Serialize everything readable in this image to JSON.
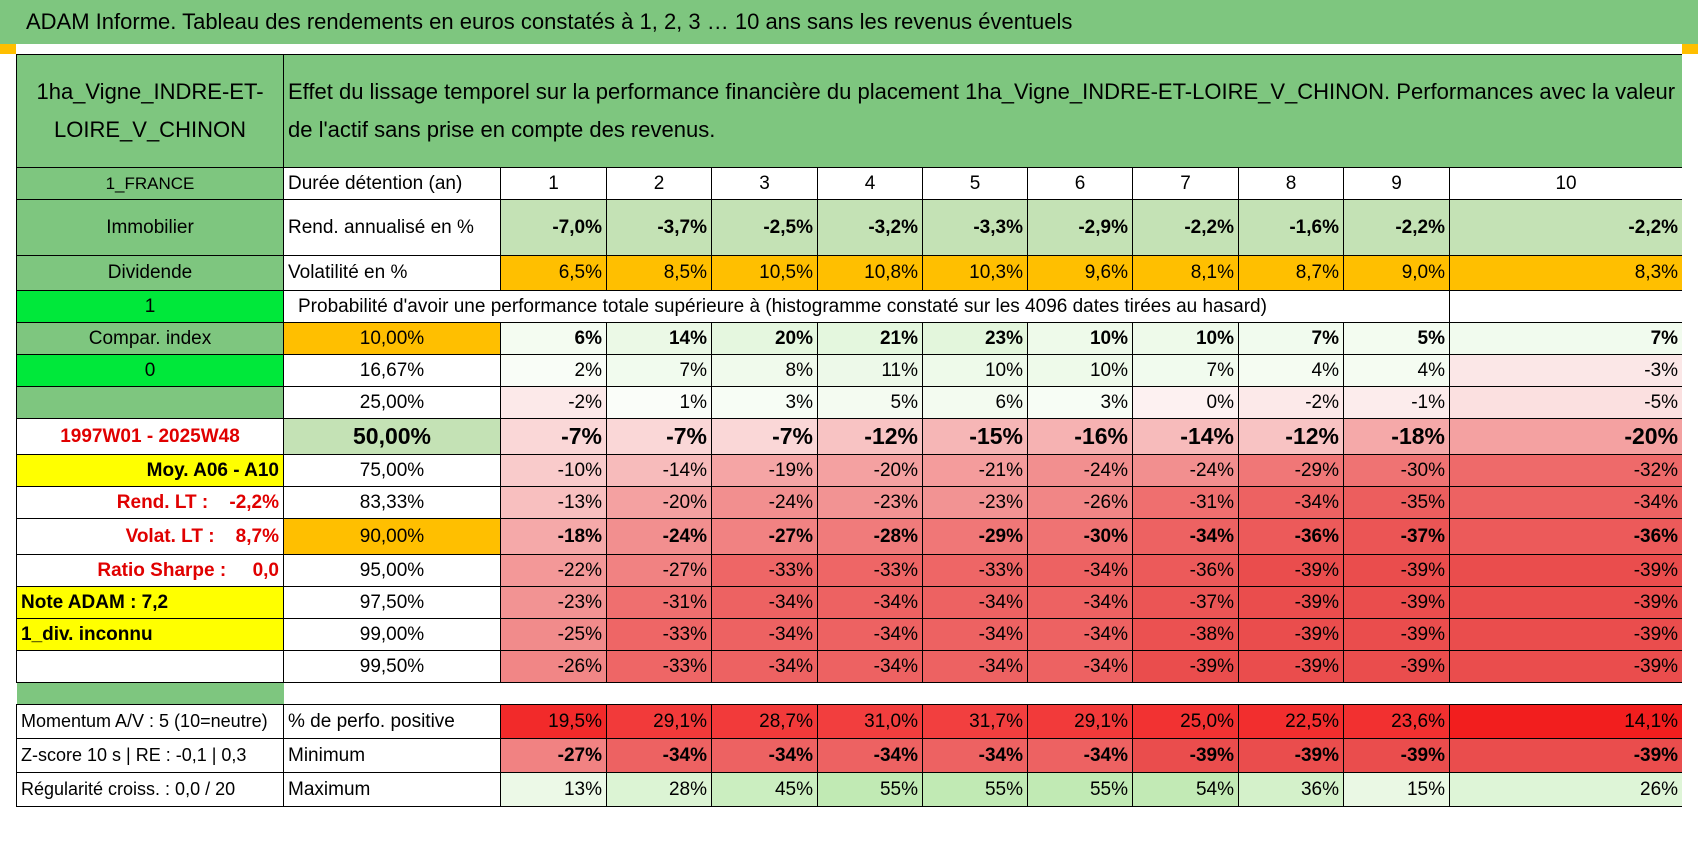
{
  "title": "ADAM Informe. Tableau des rendements en euros constatés à 1, 2, 3 … 10 ans sans les revenus éventuels",
  "asset_name": "1ha_Vigne_INDRE-ET-LOIRE_V_CHINON",
  "description": "Effet du lissage temporel sur la performance financière du placement 1ha_Vigne_INDRE-ET-LOIRE_V_CHINON. Performances avec la valeur de l'actif sans prise en compte des revenus.",
  "left_panel": {
    "country": "1_FRANCE",
    "category": "Immobilier",
    "type": "Dividende",
    "flag1": "1",
    "compar_index": "Compar. index",
    "flag0": "0",
    "period": "1997W01 - 2025W48",
    "moy": "Moy. A06 - A10",
    "rend_lt": "Rend. LT :    -2,2%",
    "volat_lt": "Volat. LT :    8,7%",
    "sharpe": "Ratio Sharpe :     0,0",
    "note": "Note ADAM : 7,2",
    "div": "1_div. inconnu"
  },
  "header_row": {
    "label": "Durée détention (an)",
    "years": [
      "1",
      "2",
      "3",
      "4",
      "5",
      "6",
      "7",
      "8",
      "9",
      "10"
    ]
  },
  "rend_row": {
    "label": "Rend. annualisé en %",
    "values": [
      "-7,0%",
      "-3,7%",
      "-2,5%",
      "-3,2%",
      "-3,3%",
      "-2,9%",
      "-2,2%",
      "-1,6%",
      "-2,2%",
      "-2,2%"
    ]
  },
  "vol_row": {
    "label": "Volatilité en %",
    "values": [
      "6,5%",
      "8,5%",
      "10,5%",
      "10,8%",
      "10,3%",
      "9,6%",
      "8,1%",
      "8,7%",
      "9,0%",
      "8,3%"
    ]
  },
  "prob_title": "Probabilité d'avoir une performance totale supérieure à (histogramme constaté sur les 4096 dates tirées au hasard)",
  "pct_rows": [
    {
      "label": "10,00%",
      "values": [
        "6%",
        "14%",
        "20%",
        "21%",
        "23%",
        "10%",
        "10%",
        "7%",
        "5%",
        "7%"
      ],
      "colors": [
        "#f4fcf1",
        "#ebf9e6",
        "#e5f7df",
        "#e4f7de",
        "#e3f6dc",
        "#eefaea",
        "#eefaea",
        "#f1fbee",
        "#f3fcf0",
        "#f1fbee"
      ]
    },
    {
      "label": "16,67%",
      "values": [
        "2%",
        "7%",
        "8%",
        "11%",
        "10%",
        "10%",
        "7%",
        "4%",
        "4%",
        "-3%"
      ],
      "colors": [
        "#f9fdf7",
        "#f1fbee",
        "#f0faec",
        "#edf9e9",
        "#eefaea",
        "#eefaea",
        "#f1fbee",
        "#f5fcf2",
        "#f5fcf2",
        "#fbe7e7"
      ]
    },
    {
      "label": "25,00%",
      "values": [
        "-2%",
        "1%",
        "3%",
        "5%",
        "6%",
        "3%",
        "0%",
        "-2%",
        "-1%",
        "-5%"
      ],
      "colors": [
        "#fce9e9",
        "#fafdf9",
        "#f7fdf5",
        "#f4fbf1",
        "#f3fbf0",
        "#f7fdf5",
        "#fdf1f1",
        "#fce9e9",
        "#fcecec",
        "#fbe0e0"
      ]
    },
    {
      "label": "50,00%",
      "values": [
        "-7%",
        "-7%",
        "-7%",
        "-12%",
        "-15%",
        "-16%",
        "-14%",
        "-12%",
        "-18%",
        "-20%"
      ],
      "colors": [
        "#fad7d7",
        "#fad7d7",
        "#fad7d7",
        "#f8c3c3",
        "#f6b6b6",
        "#f6b2b2",
        "#f7bbbb",
        "#f8c3c3",
        "#f5a9a9",
        "#f4a1a1"
      ]
    },
    {
      "label": "75,00%",
      "values": [
        "-10%",
        "-14%",
        "-19%",
        "-20%",
        "-21%",
        "-24%",
        "-24%",
        "-29%",
        "-30%",
        "-32%"
      ],
      "colors": [
        "#f9cbcb",
        "#f7bbbb",
        "#f5a5a5",
        "#f4a1a1",
        "#f49c9c",
        "#f28f8f",
        "#f28f8f",
        "#f07777",
        "#ef7373",
        "#ee6a6a"
      ]
    },
    {
      "label": "83,33%",
      "values": [
        "-13%",
        "-20%",
        "-24%",
        "-23%",
        "-23%",
        "-26%",
        "-31%",
        "-34%",
        "-35%",
        "-34%"
      ],
      "colors": [
        "#f8bfbf",
        "#f4a1a1",
        "#f28f8f",
        "#f29393",
        "#f29393",
        "#f18686",
        "#ef6f6f",
        "#ed6262",
        "#ec5e5e",
        "#ed6262"
      ]
    },
    {
      "label": "90,00%",
      "values": [
        "-18%",
        "-24%",
        "-27%",
        "-28%",
        "-29%",
        "-30%",
        "-34%",
        "-36%",
        "-37%",
        "-36%"
      ],
      "colors": [
        "#f5a9a9",
        "#f28f8f",
        "#f18282",
        "#f07b7b",
        "#f07777",
        "#ef7373",
        "#ed6262",
        "#ec5a5a",
        "#eb5555",
        "#ec5a5a"
      ]
    },
    {
      "label": "95,00%",
      "values": [
        "-22%",
        "-27%",
        "-33%",
        "-33%",
        "-33%",
        "-34%",
        "-36%",
        "-39%",
        "-39%",
        "-39%"
      ],
      "colors": [
        "#f39898",
        "#f18282",
        "#ee6666",
        "#ee6666",
        "#ee6666",
        "#ed6262",
        "#ec5a5a",
        "#ea4d4d",
        "#ea4d4d",
        "#ea4d4d"
      ]
    },
    {
      "label": "97,50%",
      "values": [
        "-23%",
        "-31%",
        "-34%",
        "-34%",
        "-34%",
        "-34%",
        "-37%",
        "-39%",
        "-39%",
        "-39%"
      ],
      "colors": [
        "#f29393",
        "#ef6f6f",
        "#ed6262",
        "#ed6262",
        "#ed6262",
        "#ed6262",
        "#eb5555",
        "#ea4d4d",
        "#ea4d4d",
        "#ea4d4d"
      ]
    },
    {
      "label": "99,00%",
      "values": [
        "-25%",
        "-33%",
        "-34%",
        "-34%",
        "-34%",
        "-34%",
        "-38%",
        "-39%",
        "-39%",
        "-39%"
      ],
      "colors": [
        "#f18b8b",
        "#ee6666",
        "#ed6262",
        "#ed6262",
        "#ed6262",
        "#ed6262",
        "#eb5151",
        "#ea4d4d",
        "#ea4d4d",
        "#ea4d4d"
      ]
    },
    {
      "label": "99,50%",
      "values": [
        "-26%",
        "-33%",
        "-34%",
        "-34%",
        "-34%",
        "-34%",
        "-39%",
        "-39%",
        "-39%",
        "-39%"
      ],
      "colors": [
        "#f18686",
        "#ee6666",
        "#ed6262",
        "#ed6262",
        "#ed6262",
        "#ed6262",
        "#ea4d4d",
        "#ea4d4d",
        "#ea4d4d",
        "#ea4d4d"
      ]
    }
  ],
  "bottom_rows": [
    {
      "left": "Momentum A/V : 5 (10=neutre)",
      "label": "% de perfo. positive",
      "values": [
        "19,5%",
        "29,1%",
        "28,7%",
        "31,0%",
        "31,7%",
        "29,1%",
        "25,0%",
        "22,5%",
        "23,6%",
        "14,1%"
      ],
      "colors": [
        "#f22a2a",
        "#f23a3a",
        "#f23a3a",
        "#f23e3e",
        "#f23f3f",
        "#f23a3a",
        "#f23232",
        "#f22e2e",
        "#f23030",
        "#f21e1e"
      ]
    },
    {
      "left": "Z-score 10 s | RE : -0,1 | 0,3",
      "label": "Minimum",
      "values": [
        "-27%",
        "-34%",
        "-34%",
        "-34%",
        "-34%",
        "-34%",
        "-39%",
        "-39%",
        "-39%",
        "-39%"
      ],
      "colors": [
        "#f18282",
        "#ed6262",
        "#ed6262",
        "#ed6262",
        "#ed6262",
        "#ed6262",
        "#ea4d4d",
        "#ea4d4d",
        "#ea4d4d",
        "#ea4d4d"
      ]
    },
    {
      "left": "Régularité croiss. : 0,0 / 20",
      "label": "Maximum",
      "values": [
        "13%",
        "28%",
        "45%",
        "55%",
        "55%",
        "55%",
        "54%",
        "36%",
        "15%",
        "26%"
      ],
      "colors": [
        "#ecf9e7",
        "#dcf4d4",
        "#cbeec0",
        "#c1eab4",
        "#c1eab4",
        "#c1eab4",
        "#c2eab5",
        "#d4f1ca",
        "#eaf8e4",
        "#def5d7"
      ]
    }
  ],
  "colors": {
    "green_header": "#7ec67f",
    "light_green": "#c4e2b5",
    "orange": "#ffbf00",
    "bright_green": "#00e83a",
    "yellow": "#ffff00",
    "red_text": "#e00000"
  }
}
